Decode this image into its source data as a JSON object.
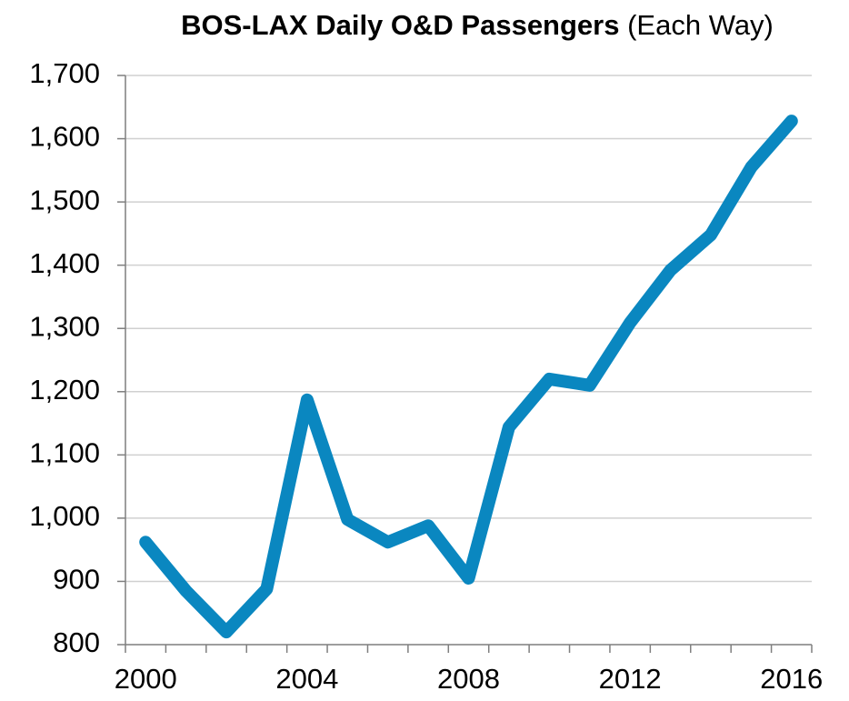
{
  "chart_data": {
    "type": "line",
    "title": "BOS-LAX Daily O&D Passengers",
    "title_note": "(Each Way)",
    "categories": [
      "2000",
      null,
      null,
      null,
      "2004",
      null,
      null,
      null,
      "2008",
      null,
      null,
      null,
      "2012",
      null,
      null,
      null,
      "2016"
    ],
    "values": [
      962,
      885,
      820,
      888,
      1187,
      998,
      962,
      988,
      905,
      1144,
      1220,
      1210,
      1309,
      1392,
      1448,
      1555,
      1628
    ],
    "color": "#0a87c0",
    "ylim": [
      800,
      1700
    ],
    "yticks": [
      800,
      900,
      {
        "value": 1000,
        "label": "1,000"
      },
      {
        "value": 1100,
        "label": "1,100"
      },
      {
        "value": 1200,
        "label": "1,200"
      },
      {
        "value": 1300,
        "label": "1,300"
      },
      {
        "value": 1400,
        "label": "1,400"
      },
      {
        "value": 1500,
        "label": "1,500"
      },
      {
        "value": 1600,
        "label": "1,600"
      },
      {
        "value": 1700,
        "label": "1,700"
      }
    ],
    "grid": true
  }
}
